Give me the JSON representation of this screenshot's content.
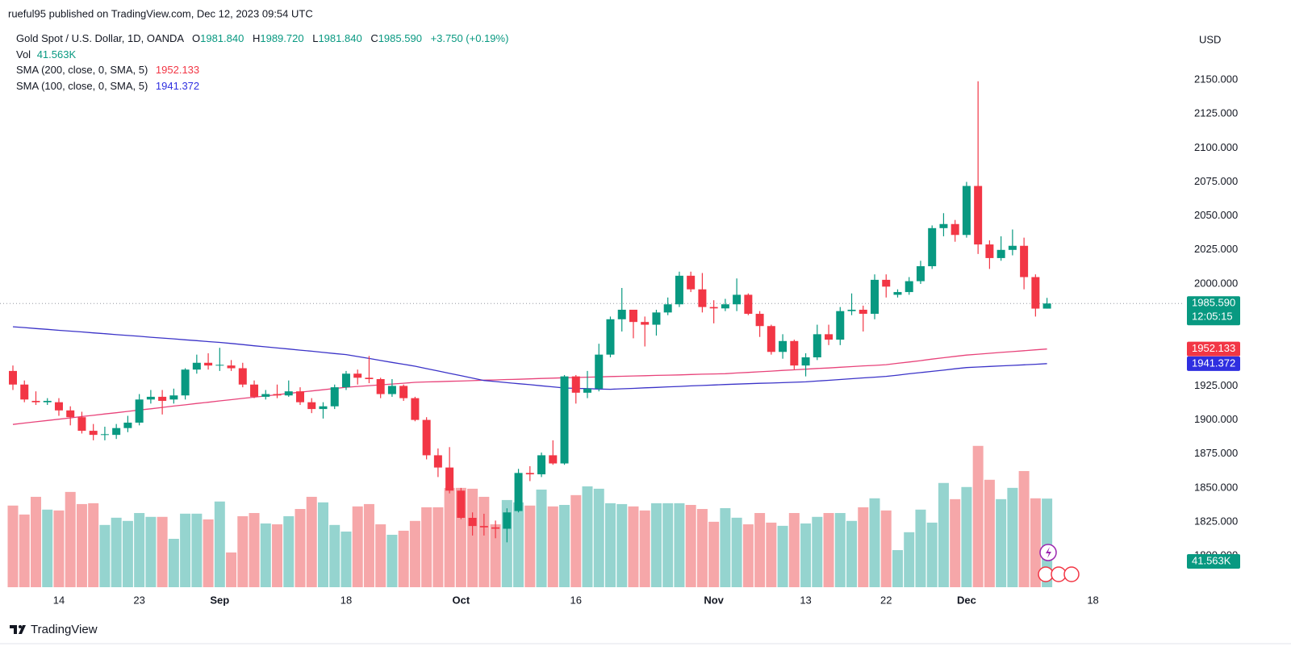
{
  "header": {
    "publisher": "rueful95 published on TradingView.com, Dec 12, 2023 09:54 UTC"
  },
  "footer": {
    "brand": "TradingView"
  },
  "chart_data": {
    "type": "candlestick",
    "legend": {
      "symbol": "Gold Spot / U.S. Dollar, 1D, OANDA",
      "open_label": "O",
      "open": "1981.840",
      "high_label": "H",
      "high": "1989.720",
      "low_label": "L",
      "low": "1981.840",
      "close_label": "C",
      "close": "1985.590",
      "change": "+3.750 (+0.19%)",
      "vol_label": "Vol",
      "vol": "41.563K"
    },
    "currency": "USD",
    "up_color": "#089981",
    "down_color": "#f23645",
    "open": [
      1936,
      1926,
      1914,
      1913,
      1913,
      1907,
      1902,
      1892,
      1889,
      1889,
      1894,
      1898,
      1915,
      1917,
      1915,
      1918,
      1937,
      1942,
      1940,
      1940,
      1938,
      1926,
      1917,
      1919,
      1918,
      1921,
      1913,
      1908,
      1910,
      1924,
      1934,
      1931,
      1930,
      1919,
      1925,
      1916,
      1900,
      1874,
      1865,
      1848,
      1828,
      1822,
      1821,
      1820,
      1833,
      1861,
      1860,
      1874,
      1868,
      1932,
      1920,
      1923,
      1948,
      1974,
      1981,
      1972,
      1970,
      1979,
      1985,
      2006,
      1996,
      1983,
      1982,
      1985,
      1992,
      1978,
      1969,
      1950,
      1958,
      1940,
      1946,
      1963,
      1959,
      1980,
      1981,
      1978,
      2003,
      1992,
      1994,
      2002,
      2013,
      2041,
      2044,
      2036,
      2072,
      2029,
      2019,
      2025,
      2028,
      2005,
      1981.84
    ],
    "high": [
      1940,
      1929,
      1921,
      1916,
      1916,
      1910,
      1906,
      1897,
      1895,
      1897,
      1903,
      1919,
      1922,
      1922,
      1923,
      1938,
      1948,
      1949,
      1953,
      1944,
      1942,
      1929,
      1922,
      1926,
      1929,
      1924,
      1916,
      1913,
      1926,
      1936,
      1937,
      1947,
      1931,
      1930,
      1926,
      1917,
      1902,
      1879,
      1880,
      1850,
      1832,
      1831,
      1826,
      1835,
      1864,
      1866,
      1876,
      1885,
      1933,
      1933,
      1936,
      1956,
      1976,
      1997,
      1981,
      1976,
      1981,
      1990,
      2009,
      2009,
      2008,
      1988,
      1989,
      2004,
      1993,
      1980,
      1970,
      1963,
      1959,
      1949,
      1970,
      1970,
      1983,
      1993,
      1984,
      2007,
      2007,
      1996,
      2005,
      2017,
      2043,
      2052,
      2047,
      2075,
      2149,
      2032,
      2035,
      2040,
      2034,
      2007,
      1989.72
    ],
    "low": [
      1922,
      1913,
      1911,
      1911,
      1903,
      1896,
      1890,
      1885,
      1885,
      1886,
      1891,
      1896,
      1912,
      1904,
      1912,
      1915,
      1934,
      1937,
      1936,
      1936,
      1924,
      1916,
      1915,
      1916,
      1917,
      1911,
      1905,
      1901,
      1908,
      1922,
      1926,
      1927,
      1916,
      1917,
      1914,
      1899,
      1871,
      1858,
      1846,
      1827,
      1815,
      1815,
      1813,
      1810,
      1832,
      1855,
      1858,
      1867,
      1867,
      1912,
      1916,
      1921,
      1946,
      1965,
      1960,
      1954,
      1962,
      1977,
      1983,
      1994,
      1979,
      1971,
      1980,
      1980,
      1977,
      1961,
      1948,
      1945,
      1937,
      1932,
      1944,
      1955,
      1955,
      1977,
      1965,
      1974,
      1990,
      1990,
      1992,
      2000,
      2011,
      2035,
      2031,
      2034,
      2022,
      2011,
      2017,
      2021,
      1996,
      1976,
      1981.84
    ],
    "close": [
      1926,
      1915,
      1913,
      1914,
      1907,
      1902,
      1892,
      1889,
      1889.5,
      1894,
      1898,
      1915,
      1917,
      1914,
      1918,
      1937,
      1942,
      1940,
      1940.5,
      1938,
      1926,
      1917,
      1919,
      1918,
      1921,
      1913,
      1908,
      1910,
      1924,
      1934,
      1931,
      1930,
      1919,
      1925,
      1916,
      1900,
      1874,
      1865,
      1848,
      1828,
      1822,
      1821,
      1820,
      1832,
      1861,
      1860,
      1874,
      1868,
      1932,
      1920,
      1923,
      1948,
      1974,
      1981,
      1972,
      1970,
      1979,
      1985,
      2006,
      1996,
      1983,
      1982,
      1985,
      1992,
      1978,
      1969,
      1950,
      1958,
      1940,
      1946,
      1963,
      1959,
      1980,
      1981,
      1978,
      2003,
      1998,
      1994,
      2002,
      2013,
      2041,
      2044,
      2036,
      2072,
      2029,
      2019,
      2025,
      2028,
      2005,
      1981.84,
      1985.59
    ],
    "last_price_label": "1985.590",
    "countdown": "12:05:15",
    "volume": {
      "ylim": [
        0,
        70
      ],
      "up_color": "#95d4cf",
      "down_color": "#f6a7a9",
      "last_label": "41.563K",
      "values": [
        38.3,
        34.1,
        42.4,
        36.4,
        36,
        44.7,
        39,
        39.4,
        29.2,
        32.6,
        31.1,
        34.8,
        33,
        33,
        22.7,
        34.5,
        34.5,
        31.8,
        40.2,
        16.3,
        33.3,
        34.8,
        29.9,
        29.5,
        33.3,
        36.7,
        42.4,
        39.8,
        29.2,
        26.1,
        37.9,
        39,
        29.5,
        24.6,
        26.5,
        31.1,
        37.5,
        37.5,
        46.6,
        46.6,
        46.2,
        42.4,
        29.5,
        40.9,
        39.8,
        38.3,
        45.8,
        37.9,
        38.6,
        43.2,
        47.3,
        46.2,
        39.4,
        39,
        37.9,
        36,
        39.4,
        39.4,
        39.4,
        38.6,
        36.7,
        30.7,
        37.1,
        32.6,
        29.5,
        34.8,
        30.3,
        28.8,
        34.8,
        29.9,
        33,
        34.8,
        34.8,
        31.1,
        37.5,
        41.7,
        36,
        17.4,
        25.8,
        36.4,
        30.3,
        48.9,
        41.3,
        47,
        66.3,
        50.4,
        41.3,
        46.6,
        54.5,
        41.7,
        41.563
      ]
    },
    "series": [
      {
        "name": "SMA (200, close, 0, SMA, 5)",
        "color": "#e8437a",
        "label_color": "#f23645",
        "value_label": "1952.133",
        "values": [
          1896.7,
          1897.7,
          1898.6,
          1899.6,
          1900.5,
          1901.5,
          1902.5,
          1903.4,
          1904.4,
          1905.3,
          1906.3,
          1907.3,
          1908.2,
          1909.2,
          1910.2,
          1911.1,
          1912.1,
          1913.0,
          1914.0,
          1914.9,
          1915.8,
          1916.7,
          1917.6,
          1918.5,
          1919.5,
          1920.4,
          1921.3,
          1922.2,
          1923.1,
          1924.0,
          1924.6,
          1925.2,
          1925.8,
          1926.4,
          1927.0,
          1927.6,
          1927.9,
          1928.1,
          1928.4,
          1928.6,
          1928.9,
          1929.2,
          1929.4,
          1929.7,
          1929.9,
          1930.2,
          1930.5,
          1930.7,
          1931.0,
          1931.2,
          1931.4,
          1931.6,
          1931.9,
          1932.1,
          1932.3,
          1932.5,
          1932.7,
          1932.9,
          1933.1,
          1933.4,
          1933.6,
          1933.8,
          1934.0,
          1934.5,
          1934.9,
          1935.4,
          1935.9,
          1936.4,
          1936.8,
          1937.3,
          1937.8,
          1938.2,
          1938.7,
          1939.2,
          1939.7,
          1940.1,
          1940.6,
          1941.6,
          1942.6,
          1943.6,
          1944.7,
          1945.7,
          1946.7,
          1947.7,
          1948.3,
          1949.0,
          1949.6,
          1950.2,
          1950.9,
          1951.5,
          1952.133
        ]
      },
      {
        "name": "SMA (100, close, 0, SMA, 5)",
        "color": "#3b33c8",
        "label_color": "#2f2fe0",
        "value_label": "1941.372",
        "values": [
          1968.5,
          1967.9,
          1967.2,
          1966.6,
          1965.9,
          1965.3,
          1964.7,
          1964.0,
          1963.4,
          1962.7,
          1962.1,
          1961.5,
          1960.8,
          1960.2,
          1959.6,
          1958.9,
          1958.3,
          1957.6,
          1957.0,
          1956.2,
          1955.4,
          1954.5,
          1953.7,
          1952.9,
          1952.1,
          1951.3,
          1950.5,
          1949.6,
          1948.8,
          1948.0,
          1946.6,
          1945.2,
          1943.7,
          1942.3,
          1940.9,
          1939.5,
          1937.7,
          1936.0,
          1934.2,
          1932.5,
          1930.7,
          1929.0,
          1928.2,
          1927.4,
          1926.6,
          1925.9,
          1925.1,
          1924.3,
          1923.5,
          1923.2,
          1923.0,
          1922.7,
          1922.5,
          1922.9,
          1923.2,
          1923.6,
          1923.9,
          1924.3,
          1924.6,
          1925.0,
          1925.3,
          1925.7,
          1926.0,
          1926.3,
          1926.6,
          1926.9,
          1927.1,
          1927.4,
          1927.7,
          1928.0,
          1928.6,
          1929.1,
          1929.7,
          1930.3,
          1930.9,
          1931.4,
          1932.0,
          1932.9,
          1933.9,
          1934.8,
          1935.7,
          1936.6,
          1937.6,
          1938.5,
          1938.9,
          1939.3,
          1939.7,
          1940.1,
          1940.5,
          1940.9,
          1941.372
        ]
      }
    ],
    "ylim": [
      1777,
      2185
    ],
    "yticks": [
      {
        "value": 1800,
        "label": "1800.000"
      },
      {
        "value": 1825,
        "label": "1825.000"
      },
      {
        "value": 1850,
        "label": "1850.000"
      },
      {
        "value": 1875,
        "label": "1875.000"
      },
      {
        "value": 1900,
        "label": "1900.000"
      },
      {
        "value": 1925,
        "label": "1925.000"
      },
      {
        "value": 1950,
        "label": "1950.000"
      },
      {
        "value": 1975,
        "label": "1975.000"
      },
      {
        "value": 2000,
        "label": "2000.000"
      },
      {
        "value": 2025,
        "label": "2025.000"
      },
      {
        "value": 2050,
        "label": "2050.000"
      },
      {
        "value": 2075,
        "label": "2075.000"
      },
      {
        "value": 2100,
        "label": "2100.000"
      },
      {
        "value": 2125,
        "label": "2125.000"
      },
      {
        "value": 2150,
        "label": "2150.000"
      }
    ],
    "xticks": [
      {
        "value": 4,
        "label": "14"
      },
      {
        "value": 11,
        "label": "23"
      },
      {
        "value": 18,
        "label": "Sep"
      },
      {
        "value": 29,
        "label": "18"
      },
      {
        "value": 39,
        "label": "Oct"
      },
      {
        "value": 49,
        "label": "16"
      },
      {
        "value": 61,
        "label": "Nov"
      },
      {
        "value": 69,
        "label": "13"
      },
      {
        "value": 76,
        "label": "22"
      },
      {
        "value": 83,
        "label": "Dec"
      },
      {
        "value": 94,
        "label": "18"
      }
    ]
  }
}
